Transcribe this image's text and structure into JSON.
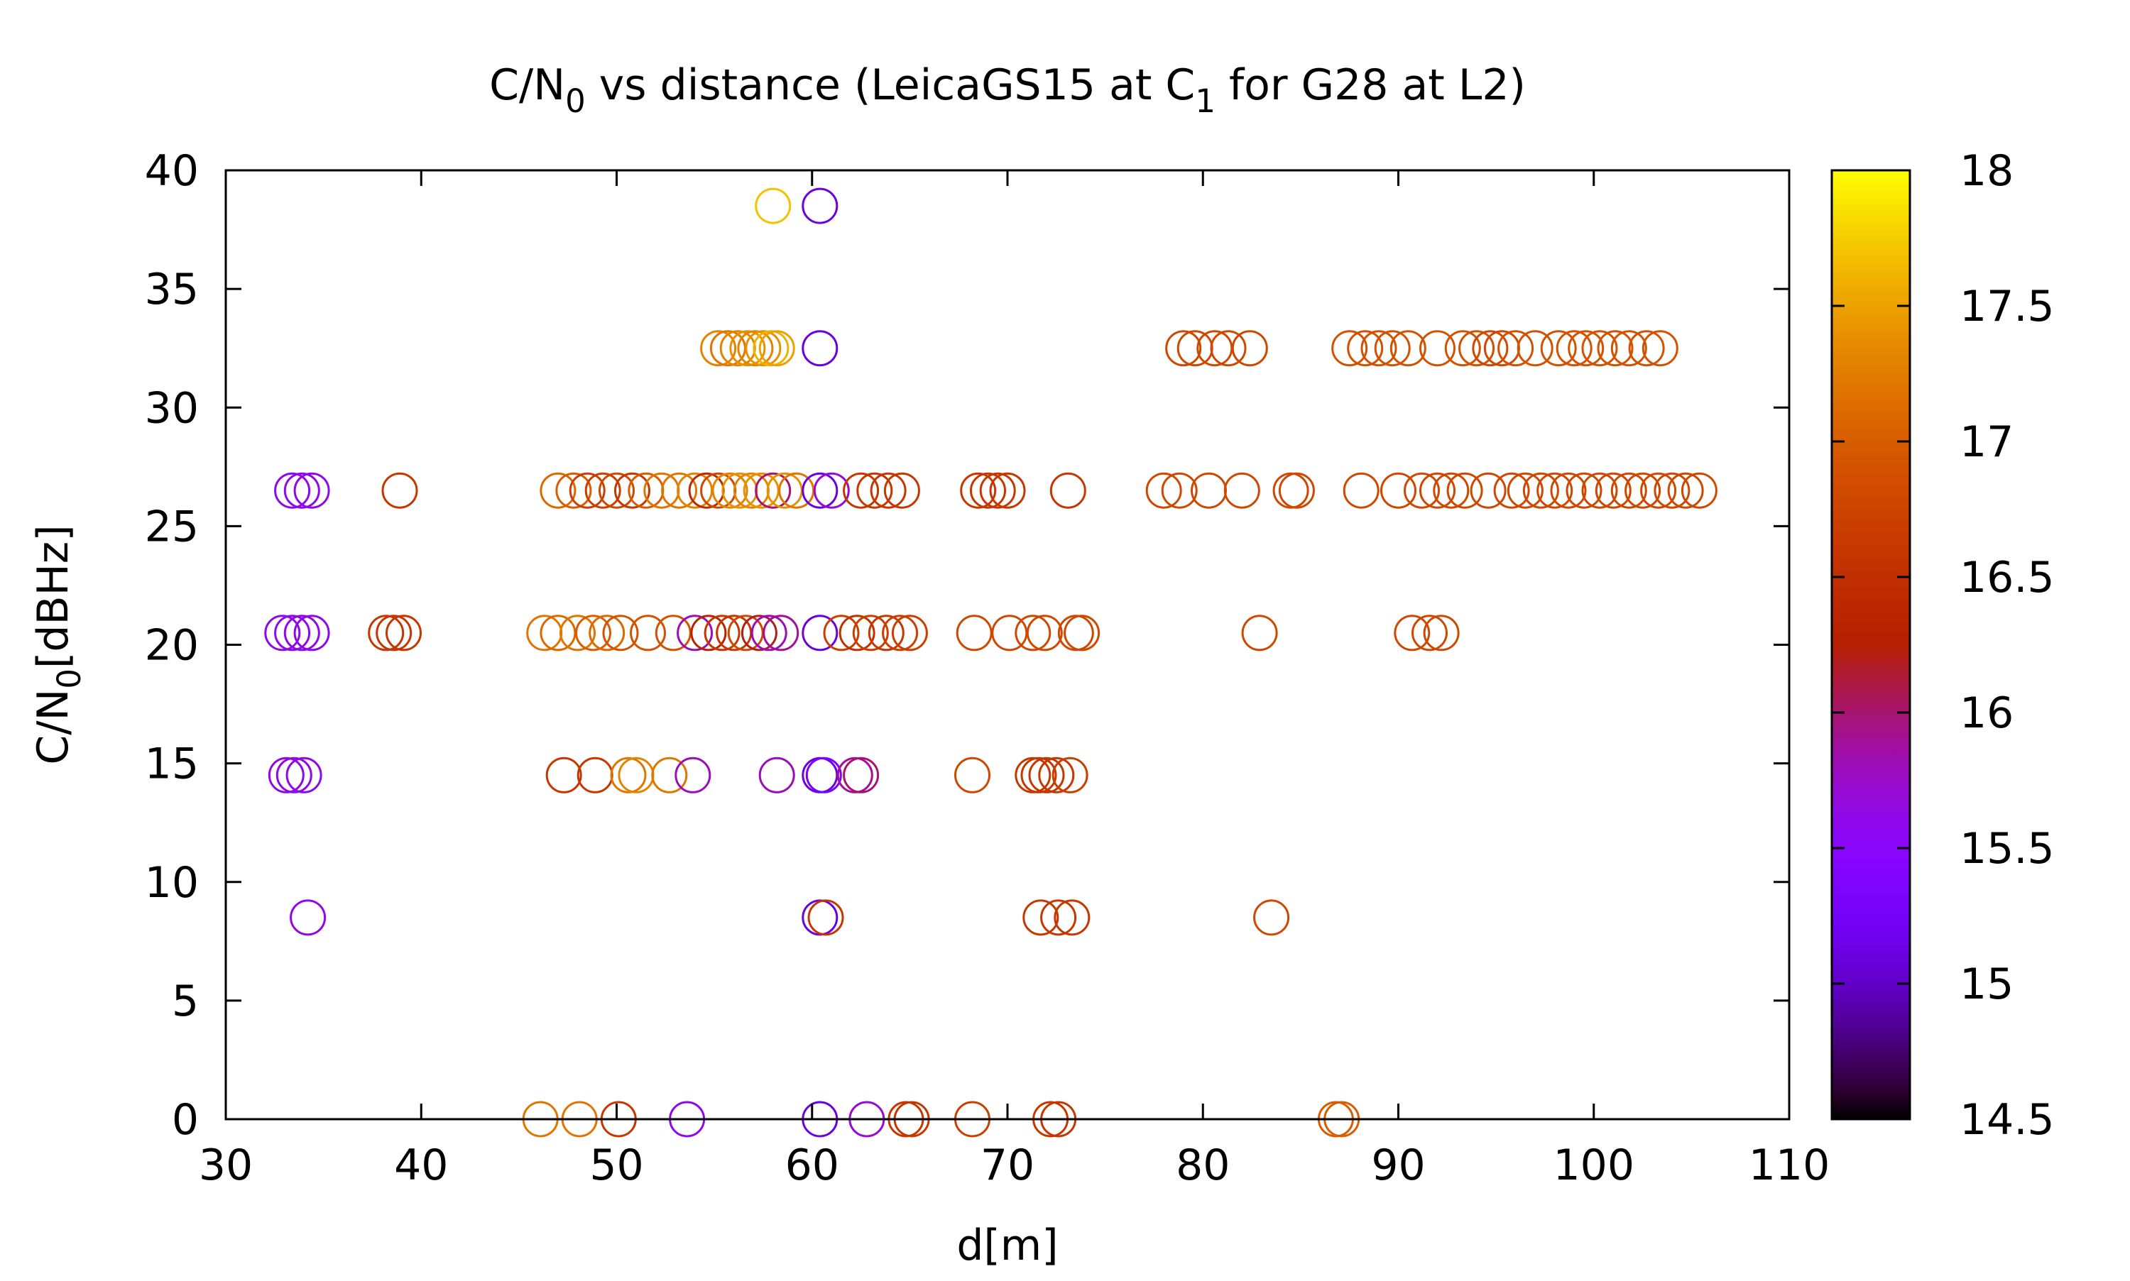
{
  "chart_data": {
    "type": "scatter",
    "title": {
      "pre": "C/N",
      "sub": "0",
      "mid": " vs distance (LeicaGS15 at C",
      "sub2": "1",
      "post": " for G28 at L2)"
    },
    "xlabel": "d[m]",
    "ylabel": {
      "pre": "C/N",
      "sub": "0",
      "post": "[dBHz]"
    },
    "xlim": [
      30,
      110
    ],
    "ylim": [
      0,
      40
    ],
    "xticks": [
      30,
      40,
      50,
      60,
      70,
      80,
      90,
      100,
      110
    ],
    "yticks": [
      0,
      5,
      10,
      15,
      20,
      25,
      30,
      35,
      40
    ],
    "colorbar": {
      "range": [
        14.5,
        18
      ],
      "ticks": [
        14.5,
        15,
        15.5,
        16,
        16.5,
        17,
        17.5,
        18
      ],
      "palette": "black-purple-red-orange-yellow"
    },
    "marker": "open-circle",
    "grid": false,
    "legend": "none",
    "points": [
      [
        58.0,
        38.5,
        17.7
      ],
      [
        60.4,
        38.5,
        15.1
      ],
      [
        55.2,
        32.5,
        17.3
      ],
      [
        55.7,
        32.5,
        17.2
      ],
      [
        56.2,
        32.5,
        17.3
      ],
      [
        56.7,
        32.5,
        17.4
      ],
      [
        57.1,
        32.5,
        17.3
      ],
      [
        57.5,
        32.5,
        17.4
      ],
      [
        57.9,
        32.5,
        17.6
      ],
      [
        58.2,
        32.5,
        17.5
      ],
      [
        60.4,
        32.5,
        15.1
      ],
      [
        79.0,
        32.5,
        16.8
      ],
      [
        79.6,
        32.5,
        16.8
      ],
      [
        80.6,
        32.5,
        16.8
      ],
      [
        81.3,
        32.5,
        16.8
      ],
      [
        82.4,
        32.5,
        16.8
      ],
      [
        87.5,
        32.5,
        16.9
      ],
      [
        88.3,
        32.5,
        16.9
      ],
      [
        89.0,
        32.5,
        16.9
      ],
      [
        89.7,
        32.5,
        16.9
      ],
      [
        90.5,
        32.5,
        16.9
      ],
      [
        92.0,
        32.5,
        16.9
      ],
      [
        93.3,
        32.5,
        16.9
      ],
      [
        94.0,
        32.5,
        16.9
      ],
      [
        94.7,
        32.5,
        16.8
      ],
      [
        95.3,
        32.5,
        16.8
      ],
      [
        96.0,
        32.5,
        16.9
      ],
      [
        97.0,
        32.5,
        16.9
      ],
      [
        98.2,
        32.5,
        16.9
      ],
      [
        99.0,
        32.5,
        16.9
      ],
      [
        99.6,
        32.5,
        16.9
      ],
      [
        100.3,
        32.5,
        16.9
      ],
      [
        101.1,
        32.5,
        16.9
      ],
      [
        101.8,
        32.5,
        16.9
      ],
      [
        102.7,
        32.5,
        16.9
      ],
      [
        103.4,
        32.5,
        16.9
      ],
      [
        33.4,
        26.5,
        15.6
      ],
      [
        33.9,
        26.5,
        15.6
      ],
      [
        34.4,
        26.5,
        15.6
      ],
      [
        38.9,
        26.5,
        16.6
      ],
      [
        47.0,
        26.5,
        17.1
      ],
      [
        47.8,
        26.5,
        17.0
      ],
      [
        48.5,
        26.5,
        16.7
      ],
      [
        49.3,
        26.5,
        16.7
      ],
      [
        50.0,
        26.5,
        16.8
      ],
      [
        50.8,
        26.5,
        16.6
      ],
      [
        51.5,
        26.5,
        17.0
      ],
      [
        52.3,
        26.5,
        17.2
      ],
      [
        53.2,
        26.5,
        17.2
      ],
      [
        54.0,
        26.5,
        17.3
      ],
      [
        54.6,
        26.5,
        16.4
      ],
      [
        55.2,
        26.5,
        16.8
      ],
      [
        55.8,
        26.5,
        17.3
      ],
      [
        56.3,
        26.5,
        17.4
      ],
      [
        56.9,
        26.5,
        17.3
      ],
      [
        57.4,
        26.5,
        17.4
      ],
      [
        58.0,
        26.5,
        16.0
      ],
      [
        58.6,
        26.5,
        17.4
      ],
      [
        59.2,
        26.5,
        17.2
      ],
      [
        60.4,
        26.5,
        15.1
      ],
      [
        61.0,
        26.5,
        15.7
      ],
      [
        62.5,
        26.5,
        16.6
      ],
      [
        63.2,
        26.5,
        16.6
      ],
      [
        63.9,
        26.5,
        16.6
      ],
      [
        64.6,
        26.5,
        16.6
      ],
      [
        68.5,
        26.5,
        16.6
      ],
      [
        69.0,
        26.5,
        16.6
      ],
      [
        69.5,
        26.5,
        16.6
      ],
      [
        70.0,
        26.5,
        16.6
      ],
      [
        73.1,
        26.5,
        16.6
      ],
      [
        78.0,
        26.5,
        16.8
      ],
      [
        78.8,
        26.5,
        16.8
      ],
      [
        80.3,
        26.5,
        16.8
      ],
      [
        82.0,
        26.5,
        16.8
      ],
      [
        84.5,
        26.5,
        16.8
      ],
      [
        84.8,
        26.5,
        16.8
      ],
      [
        88.1,
        26.5,
        16.8
      ],
      [
        90.0,
        26.5,
        16.8
      ],
      [
        91.2,
        26.5,
        16.8
      ],
      [
        92.0,
        26.5,
        16.8
      ],
      [
        92.7,
        26.5,
        16.8
      ],
      [
        93.4,
        26.5,
        16.8
      ],
      [
        94.6,
        26.5,
        16.8
      ],
      [
        95.8,
        26.5,
        16.8
      ],
      [
        96.5,
        26.5,
        16.8
      ],
      [
        97.3,
        26.5,
        16.8
      ],
      [
        98.0,
        26.5,
        16.8
      ],
      [
        98.7,
        26.5,
        16.8
      ],
      [
        99.5,
        26.5,
        16.8
      ],
      [
        100.3,
        26.5,
        16.8
      ],
      [
        101.0,
        26.5,
        16.8
      ],
      [
        101.8,
        26.5,
        16.8
      ],
      [
        102.5,
        26.5,
        16.8
      ],
      [
        103.3,
        26.5,
        16.8
      ],
      [
        104.0,
        26.5,
        16.8
      ],
      [
        104.7,
        26.5,
        16.8
      ],
      [
        105.4,
        26.5,
        16.8
      ],
      [
        32.9,
        20.5,
        15.6
      ],
      [
        33.4,
        20.5,
        15.6
      ],
      [
        33.9,
        20.5,
        15.6
      ],
      [
        34.4,
        20.5,
        15.6
      ],
      [
        38.2,
        20.5,
        16.6
      ],
      [
        38.6,
        20.5,
        16.6
      ],
      [
        39.1,
        20.5,
        16.6
      ],
      [
        46.3,
        20.5,
        17.2
      ],
      [
        47.0,
        20.5,
        17.1
      ],
      [
        48.0,
        20.5,
        17.2
      ],
      [
        48.8,
        20.5,
        17.0
      ],
      [
        49.5,
        20.5,
        17.1
      ],
      [
        50.2,
        20.5,
        16.9
      ],
      [
        51.6,
        20.5,
        16.9
      ],
      [
        52.9,
        20.5,
        16.9
      ],
      [
        54.0,
        20.5,
        15.8
      ],
      [
        54.7,
        20.5,
        16.3
      ],
      [
        55.4,
        20.5,
        16.6
      ],
      [
        56.0,
        20.5,
        16.6
      ],
      [
        56.6,
        20.5,
        16.8
      ],
      [
        57.3,
        20.5,
        16.2
      ],
      [
        57.8,
        20.5,
        15.8
      ],
      [
        58.4,
        20.5,
        15.9
      ],
      [
        60.4,
        20.5,
        15.1
      ],
      [
        61.5,
        20.5,
        16.7
      ],
      [
        62.3,
        20.5,
        16.5
      ],
      [
        63.0,
        20.5,
        16.7
      ],
      [
        63.8,
        20.5,
        16.6
      ],
      [
        64.5,
        20.5,
        16.7
      ],
      [
        65.0,
        20.5,
        16.7
      ],
      [
        68.3,
        20.5,
        16.8
      ],
      [
        70.1,
        20.5,
        16.8
      ],
      [
        71.3,
        20.5,
        16.8
      ],
      [
        71.9,
        20.5,
        16.8
      ],
      [
        73.5,
        20.5,
        16.8
      ],
      [
        73.8,
        20.5,
        16.8
      ],
      [
        82.9,
        20.5,
        16.8
      ],
      [
        90.7,
        20.5,
        16.8
      ],
      [
        91.6,
        20.5,
        16.8
      ],
      [
        92.2,
        20.5,
        16.8
      ],
      [
        33.1,
        14.5,
        15.6
      ],
      [
        33.5,
        14.5,
        15.6
      ],
      [
        34.0,
        14.5,
        15.6
      ],
      [
        47.3,
        14.5,
        16.6
      ],
      [
        48.9,
        14.5,
        16.6
      ],
      [
        50.6,
        14.5,
        17.2
      ],
      [
        51.0,
        14.5,
        17.3
      ],
      [
        52.7,
        14.5,
        17.2
      ],
      [
        53.9,
        14.5,
        15.8
      ],
      [
        58.2,
        14.5,
        15.8
      ],
      [
        60.4,
        14.5,
        15.1
      ],
      [
        60.6,
        14.5,
        15.3
      ],
      [
        62.2,
        14.5,
        15.9
      ],
      [
        62.5,
        14.5,
        16.0
      ],
      [
        68.2,
        14.5,
        16.8
      ],
      [
        71.3,
        14.5,
        16.6
      ],
      [
        71.6,
        14.5,
        16.6
      ],
      [
        72.0,
        14.5,
        16.6
      ],
      [
        72.5,
        14.5,
        16.6
      ],
      [
        73.2,
        14.5,
        16.7
      ],
      [
        34.2,
        8.5,
        15.6
      ],
      [
        60.4,
        8.5,
        15.1
      ],
      [
        60.7,
        8.5,
        16.6
      ],
      [
        71.7,
        8.5,
        16.6
      ],
      [
        72.6,
        8.5,
        16.6
      ],
      [
        73.3,
        8.5,
        16.6
      ],
      [
        83.5,
        8.5,
        16.8
      ],
      [
        46.1,
        0,
        17.2
      ],
      [
        48.1,
        0,
        17.2
      ],
      [
        50.1,
        0,
        16.6
      ],
      [
        53.6,
        0,
        15.6
      ],
      [
        60.4,
        0,
        15.1
      ],
      [
        62.8,
        0,
        15.7
      ],
      [
        64.8,
        0,
        16.6
      ],
      [
        65.1,
        0,
        16.6
      ],
      [
        68.2,
        0,
        16.7
      ],
      [
        72.2,
        0,
        16.6
      ],
      [
        72.6,
        0,
        16.6
      ],
      [
        86.8,
        0,
        17.0
      ],
      [
        87.1,
        0,
        17.0
      ]
    ]
  }
}
